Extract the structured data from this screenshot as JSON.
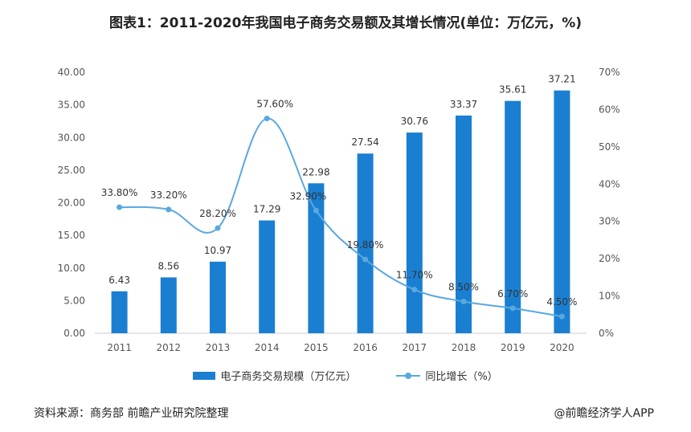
{
  "title": "图表1：2011-2020年我国电子商务交易额及其增长情况(单位：万亿元，%)",
  "source": "资料来源：商务部 前瞻产业研究院整理",
  "brand": "@前瞻经济学人APP",
  "colors": {
    "bar": "#1a7fd1",
    "line": "#5aa8e0",
    "axis_text": "#555555",
    "label": "#333333"
  },
  "chart_data": {
    "type": "bar",
    "categories": [
      "2011",
      "2012",
      "2013",
      "2014",
      "2015",
      "2016",
      "2017",
      "2018",
      "2019",
      "2020"
    ],
    "series": [
      {
        "name": "电子商务交易规模（万亿元）",
        "type": "bar",
        "axis": "left",
        "values": [
          6.43,
          8.56,
          10.97,
          17.29,
          22.98,
          27.54,
          30.76,
          33.37,
          35.61,
          37.21
        ]
      },
      {
        "name": "同比增长（%）",
        "type": "line",
        "axis": "right",
        "values": [
          33.8,
          33.2,
          28.2,
          57.6,
          32.9,
          19.8,
          11.7,
          8.5,
          6.7,
          4.5
        ],
        "labels": [
          "33.80%",
          "33.20%",
          "28.20%",
          "57.60%",
          "32.90%",
          "19.80%",
          "11.70%",
          "8.50%",
          "6.70%",
          "4.50%"
        ]
      }
    ],
    "bar_labels": [
      "6.43",
      "8.56",
      "10.97",
      "17.29",
      "22.98",
      "27.54",
      "30.76",
      "33.37",
      "35.61",
      "37.21"
    ],
    "y_left": {
      "min": 0,
      "max": 40,
      "ticks": [
        "0.00",
        "5.00",
        "10.00",
        "15.00",
        "20.00",
        "25.00",
        "30.00",
        "35.00",
        "40.00"
      ]
    },
    "y_right": {
      "min": 0,
      "max": 70,
      "ticks": [
        "0%",
        "10%",
        "20%",
        "30%",
        "40%",
        "50%",
        "60%",
        "70%"
      ]
    },
    "legend_placement": "bottom",
    "grid": false
  }
}
